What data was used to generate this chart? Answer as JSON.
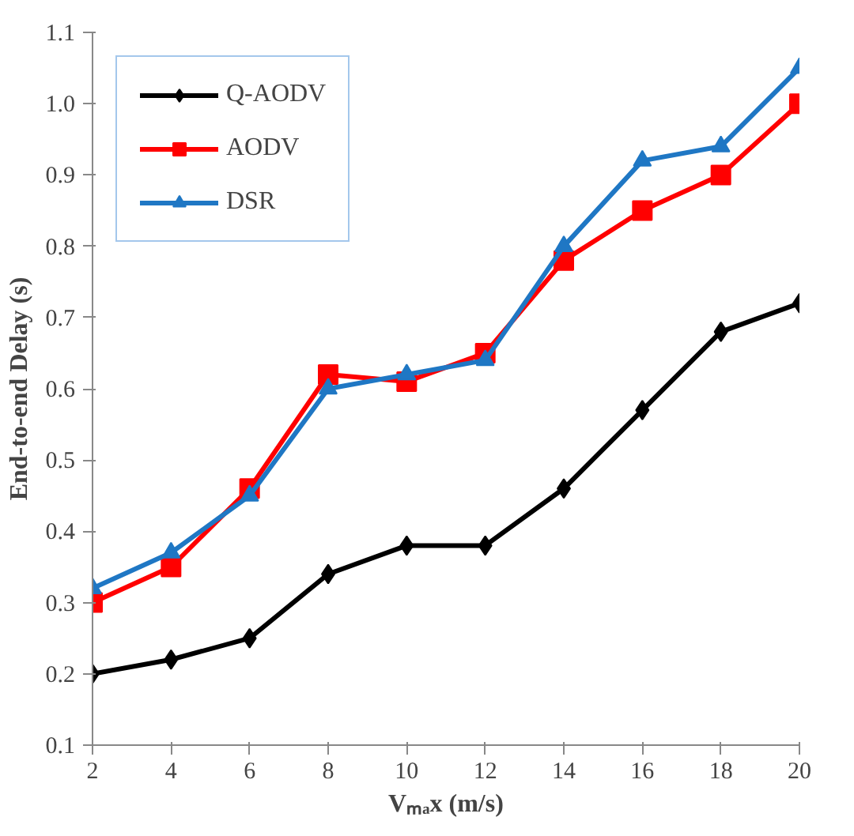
{
  "chart_data": {
    "type": "line",
    "xlabel": "Vₘₐx (m/s)",
    "ylabel": "End-to-end Delay (s)",
    "x": [
      2,
      4,
      6,
      8,
      10,
      12,
      14,
      16,
      18,
      20
    ],
    "xlim": [
      2,
      20
    ],
    "xticks": [
      2,
      4,
      6,
      8,
      10,
      12,
      14,
      16,
      18,
      20
    ],
    "ylim": [
      0.1,
      1.1
    ],
    "yticks": [
      {
        "value": 0.1,
        "label": "0.1"
      },
      {
        "value": 0.2,
        "label": "0.2"
      },
      {
        "value": 0.3,
        "label": "0.3"
      },
      {
        "value": 0.4,
        "label": "0.4"
      },
      {
        "value": 0.5,
        "label": "0.5"
      },
      {
        "value": 0.6,
        "label": "0.6"
      },
      {
        "value": 0.7,
        "label": "0.7"
      },
      {
        "value": 0.8,
        "label": "0.8"
      },
      {
        "value": 0.9,
        "label": "0.9"
      },
      {
        "value": 1.0,
        "label": "1.0"
      },
      {
        "value": 1.1,
        "label": "1.1"
      }
    ],
    "grid": false,
    "legend": "top left",
    "line_style": "solid",
    "series": [
      {
        "name": "Q-AODV",
        "color": "#000000",
        "marker": "diamond",
        "values": [
          0.2,
          0.22,
          0.25,
          0.34,
          0.38,
          0.38,
          0.46,
          0.57,
          0.68,
          0.72
        ]
      },
      {
        "name": "AODV",
        "color": "#ff0000",
        "marker": "square",
        "values": [
          0.3,
          0.35,
          0.46,
          0.62,
          0.61,
          0.65,
          0.78,
          0.85,
          0.9,
          1.0
        ]
      },
      {
        "name": "DSR",
        "color": "#1f77c4",
        "marker": "triangle",
        "values": [
          0.32,
          0.37,
          0.45,
          0.6,
          0.62,
          0.64,
          0.8,
          0.92,
          0.94,
          1.05
        ]
      }
    ]
  }
}
